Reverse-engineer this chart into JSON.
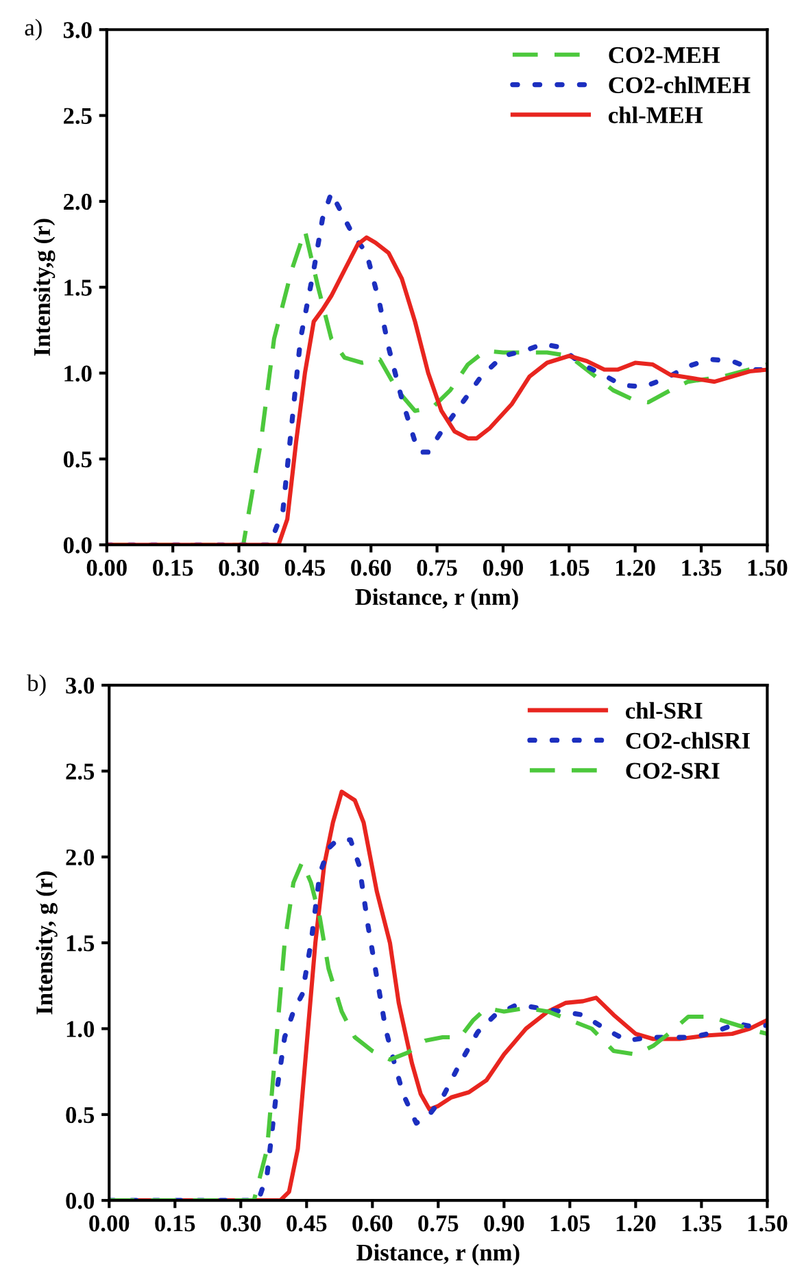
{
  "chart_data": [
    {
      "type": "line",
      "annotations": [
        "a)"
      ],
      "xlabel": "Distance, r (nm)",
      "ylabel": "Intensity,g (r)",
      "xlim": [
        0,
        1.5
      ],
      "ylim": [
        0,
        3.0
      ],
      "xticks": [
        {
          "value": 0,
          "label": "0.00"
        },
        {
          "value": 0.15,
          "label": "0.15"
        },
        {
          "value": 0.3,
          "label": "0.30"
        },
        {
          "value": 0.45,
          "label": "0.45"
        },
        {
          "value": 0.6,
          "label": "0.60"
        },
        {
          "value": 0.75,
          "label": "0.75"
        },
        {
          "value": 0.9,
          "label": "0.90"
        },
        {
          "value": 1.05,
          "label": "1.05"
        },
        {
          "value": 1.2,
          "label": "1.20"
        },
        {
          "value": 1.35,
          "label": "1.35"
        },
        {
          "value": 1.5,
          "label": "1.50"
        }
      ],
      "yticks": [
        {
          "value": 0,
          "label": "0.0"
        },
        0.5,
        {
          "value": 1,
          "label": "1.0"
        },
        1.5,
        {
          "value": 2,
          "label": "2.0"
        },
        2.5,
        {
          "value": 3,
          "label": "3.0"
        }
      ],
      "grid": false,
      "legend": "top right",
      "series": [
        {
          "name": "CO2-MEH",
          "color": "#4cc83c",
          "line_style": "dashed",
          "x": [
            0,
            0.31,
            0.35,
            0.38,
            0.42,
            0.45,
            0.48,
            0.51,
            0.54,
            0.58,
            0.62,
            0.66,
            0.7,
            0.74,
            0.78,
            0.82,
            0.86,
            0.9,
            1.0,
            1.05,
            1.1,
            1.15,
            1.2,
            1.23,
            1.28,
            1.32,
            1.4,
            1.5
          ],
          "values": [
            0,
            0,
            0.6,
            1.2,
            1.6,
            1.83,
            1.5,
            1.2,
            1.09,
            1.06,
            1.08,
            0.9,
            0.78,
            0.8,
            0.9,
            1.05,
            1.13,
            1.12,
            1.12,
            1.1,
            1.0,
            0.9,
            0.84,
            0.83,
            0.9,
            0.95,
            0.98,
            1.05
          ]
        },
        {
          "name": "CO2-chlMEH",
          "color": "#1c2fbf",
          "line_style": "dotted",
          "x": [
            0,
            0.37,
            0.4,
            0.42,
            0.44,
            0.47,
            0.49,
            0.51,
            0.53,
            0.56,
            0.59,
            0.62,
            0.64,
            0.67,
            0.7,
            0.71,
            0.73,
            0.76,
            0.8,
            0.85,
            0.9,
            0.95,
            0.99,
            1.03,
            1.08,
            1.12,
            1.17,
            1.22,
            1.27,
            1.32,
            1.37,
            1.42,
            1.47,
            1.5
          ],
          "values": [
            0,
            0,
            0.2,
            0.7,
            1.2,
            1.6,
            1.9,
            2.05,
            1.95,
            1.8,
            1.7,
            1.4,
            1.15,
            0.85,
            0.6,
            0.54,
            0.54,
            0.66,
            0.8,
            0.98,
            1.1,
            1.13,
            1.17,
            1.15,
            1.05,
            1.0,
            0.93,
            0.92,
            0.97,
            1.04,
            1.08,
            1.07,
            1.02,
            1.02
          ]
        },
        {
          "name": "chl-MEH",
          "color": "#e8251f",
          "line_style": "solid",
          "x": [
            0,
            0.39,
            0.41,
            0.43,
            0.45,
            0.47,
            0.49,
            0.51,
            0.54,
            0.57,
            0.59,
            0.61,
            0.64,
            0.67,
            0.7,
            0.73,
            0.76,
            0.79,
            0.82,
            0.84,
            0.87,
            0.92,
            0.96,
            1.0,
            1.05,
            1.09,
            1.13,
            1.16,
            1.2,
            1.24,
            1.28,
            1.33,
            1.38,
            1.42,
            1.46,
            1.5
          ],
          "values": [
            0,
            0,
            0.15,
            0.6,
            1.0,
            1.3,
            1.37,
            1.45,
            1.6,
            1.75,
            1.79,
            1.76,
            1.7,
            1.55,
            1.3,
            1.0,
            0.78,
            0.66,
            0.62,
            0.62,
            0.68,
            0.82,
            0.98,
            1.06,
            1.1,
            1.07,
            1.02,
            1.02,
            1.06,
            1.05,
            0.99,
            0.97,
            0.95,
            0.98,
            1.01,
            1.02
          ]
        }
      ]
    },
    {
      "type": "line",
      "annotations": [
        "b)"
      ],
      "xlabel": "Distance, r (nm)",
      "ylabel": "Intensity, g (r)",
      "xlim": [
        0,
        1.5
      ],
      "ylim": [
        0,
        3.0
      ],
      "xticks": [
        {
          "value": 0,
          "label": "0.00"
        },
        {
          "value": 0.15,
          "label": "0.15"
        },
        {
          "value": 0.3,
          "label": "0.30"
        },
        {
          "value": 0.45,
          "label": "0.45"
        },
        {
          "value": 0.6,
          "label": "0.60"
        },
        {
          "value": 0.75,
          "label": "0.75"
        },
        {
          "value": 0.9,
          "label": "0.90"
        },
        {
          "value": 1.05,
          "label": "1.05"
        },
        {
          "value": 1.2,
          "label": "1.20"
        },
        {
          "value": 1.35,
          "label": "1.35"
        },
        {
          "value": 1.5,
          "label": "1.50"
        }
      ],
      "yticks": [
        {
          "value": 0,
          "label": "0.0"
        },
        0.5,
        {
          "value": 1,
          "label": "1.0"
        },
        1.5,
        {
          "value": 2,
          "label": "2.0"
        },
        2.5,
        {
          "value": 3,
          "label": "3.0"
        }
      ],
      "grid": false,
      "legend": "top right",
      "series": [
        {
          "name": "chl-SRI",
          "color": "#e8251f",
          "line_style": "solid",
          "x": [
            0,
            0.39,
            0.41,
            0.43,
            0.45,
            0.47,
            0.49,
            0.51,
            0.53,
            0.56,
            0.58,
            0.61,
            0.64,
            0.66,
            0.69,
            0.71,
            0.73,
            0.75,
            0.78,
            0.82,
            0.86,
            0.9,
            0.95,
            1.0,
            1.04,
            1.08,
            1.11,
            1.15,
            1.2,
            1.24,
            1.3,
            1.36,
            1.42,
            1.46,
            1.5
          ],
          "values": [
            0,
            0,
            0.05,
            0.3,
            0.9,
            1.5,
            1.95,
            2.2,
            2.38,
            2.33,
            2.2,
            1.8,
            1.5,
            1.15,
            0.8,
            0.62,
            0.53,
            0.55,
            0.6,
            0.63,
            0.7,
            0.85,
            1.0,
            1.1,
            1.15,
            1.16,
            1.18,
            1.08,
            0.97,
            0.94,
            0.94,
            0.96,
            0.97,
            1.0,
            1.05
          ]
        },
        {
          "name": "CO2-chlSRI",
          "color": "#1c2fbf",
          "line_style": "dotted",
          "x": [
            0,
            0.34,
            0.36,
            0.38,
            0.4,
            0.42,
            0.44,
            0.46,
            0.48,
            0.5,
            0.52,
            0.55,
            0.57,
            0.59,
            0.61,
            0.63,
            0.65,
            0.67,
            0.7,
            0.73,
            0.76,
            0.8,
            0.84,
            0.88,
            0.93,
            0.98,
            1.03,
            1.08,
            1.13,
            1.18,
            1.23,
            1.28,
            1.33,
            1.38,
            1.43,
            1.47,
            1.5
          ],
          "values": [
            0,
            0,
            0.15,
            0.6,
            0.95,
            1.1,
            1.2,
            1.5,
            1.9,
            2.05,
            2.1,
            2.1,
            1.95,
            1.6,
            1.3,
            1.0,
            0.8,
            0.62,
            0.45,
            0.5,
            0.6,
            0.8,
            0.98,
            1.08,
            1.14,
            1.12,
            1.1,
            1.08,
            1.0,
            0.93,
            0.95,
            0.95,
            0.95,
            0.98,
            1.03,
            1.01,
            1.02
          ]
        },
        {
          "name": "CO2-SRI",
          "color": "#4cc83c",
          "line_style": "dashed",
          "x": [
            0,
            0.33,
            0.36,
            0.38,
            0.4,
            0.42,
            0.44,
            0.46,
            0.48,
            0.5,
            0.53,
            0.56,
            0.6,
            0.64,
            0.68,
            0.72,
            0.76,
            0.8,
            0.83,
            0.86,
            0.9,
            0.95,
            1.0,
            1.05,
            1.1,
            1.15,
            1.2,
            1.24,
            1.28,
            1.32,
            1.37,
            1.42,
            1.47,
            1.5
          ],
          "values": [
            0,
            0,
            0.3,
            0.9,
            1.5,
            1.85,
            1.97,
            1.85,
            1.65,
            1.35,
            1.1,
            0.95,
            0.87,
            0.82,
            0.86,
            0.93,
            0.95,
            0.95,
            1.05,
            1.12,
            1.1,
            1.12,
            1.1,
            1.05,
            1.0,
            0.87,
            0.85,
            0.9,
            0.98,
            1.07,
            1.07,
            1.03,
            0.99,
            0.97
          ]
        }
      ]
    }
  ]
}
